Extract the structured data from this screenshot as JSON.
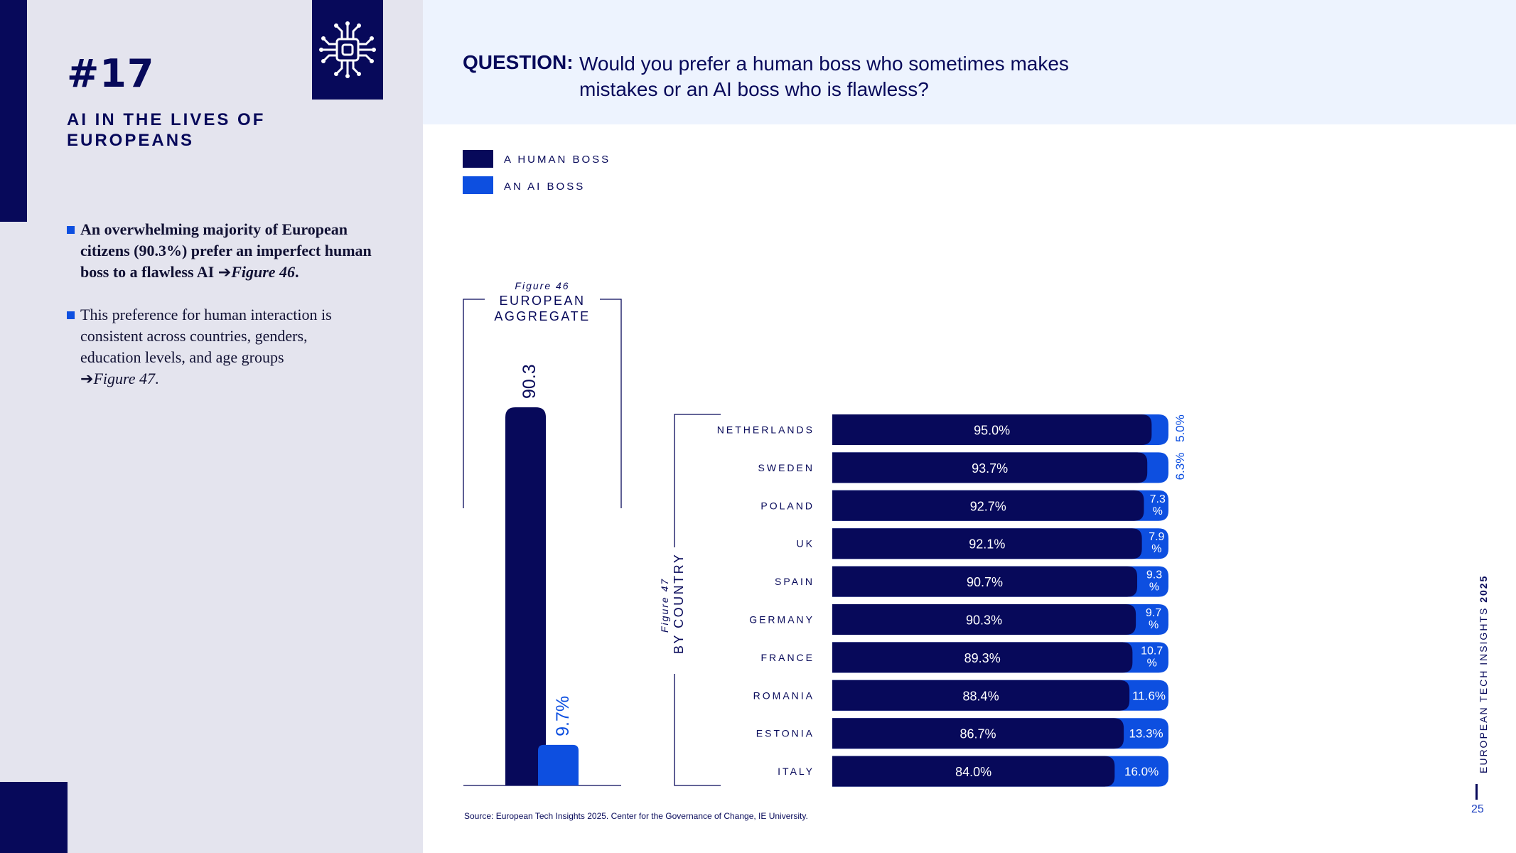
{
  "sidebar": {
    "number": "#17",
    "title": "AI IN THE LIVES OF EUROPEANS",
    "bullet1": {
      "text": "An overwhelming majority of European citizens (90.3%) prefer an imperfect human boss to a flawless AI",
      "fig": "Figure 46",
      "end": "."
    },
    "bullet2": {
      "text": "This preference for human interaction is consistent across countries, genders, education levels, and age groups",
      "fig": "Figure 47",
      "end": "."
    }
  },
  "header": {
    "question_label": "QUESTION:",
    "question_text": "Would you prefer a human boss who sometimes makes mistakes or an AI boss who is flawless?"
  },
  "colors": {
    "human": "#07095a",
    "ai": "#0d4fe0",
    "accent_text": "#1b3fbf"
  },
  "chart_data": [
    {
      "type": "bar",
      "figure_label": "Figure 46",
      "title": "EUROPEAN AGGREGATE",
      "series": [
        {
          "name": "A HUMAN BOSS",
          "values": [
            90.3
          ]
        },
        {
          "name": "AN AI BOSS",
          "values": [
            9.7
          ]
        }
      ],
      "value_labels": [
        "90.3",
        "9.7%"
      ],
      "ylim": [
        0,
        100
      ]
    },
    {
      "type": "bar",
      "orientation": "horizontal",
      "stacked": true,
      "figure_label": "Figure 47",
      "title": "BY COUNTRY",
      "legend": [
        "A HUMAN BOSS",
        "AN AI BOSS"
      ],
      "legend_position": "top-left",
      "categories": [
        "NETHERLANDS",
        "SWEDEN",
        "POLAND",
        "UK",
        "SPAIN",
        "GERMANY",
        "FRANCE",
        "ROMANIA",
        "ESTONIA",
        "ITALY"
      ],
      "series": [
        {
          "name": "A HUMAN BOSS",
          "values": [
            95.0,
            93.7,
            92.7,
            92.1,
            90.7,
            90.3,
            89.3,
            88.4,
            86.7,
            84.0
          ]
        },
        {
          "name": "AN AI BOSS",
          "values": [
            5.0,
            6.3,
            7.3,
            7.9,
            9.3,
            9.7,
            10.7,
            11.6,
            13.3,
            16.0
          ]
        }
      ],
      "human_labels": [
        "95.0%",
        "93.7%",
        "92.7%",
        "92.1%",
        "90.7%",
        "90.3%",
        "89.3%",
        "88.4%",
        "86.7%",
        "84.0%"
      ],
      "ai_labels": [
        "5.0%",
        "6.3%",
        "7.3\n%",
        "7.9\n%",
        "9.3\n%",
        "9.7\n%",
        "10.7\n%",
        "11.6%",
        "13.3%",
        "16.0%"
      ],
      "xlim": [
        0,
        100
      ]
    }
  ],
  "footer": {
    "source": "Source: European Tech Insights 2025. Center for the Governance of Change, IE University.",
    "side_title_regular": "EUROPEAN TECH INSIGHTS ",
    "side_title_bold": "2025",
    "page_number": "25"
  }
}
